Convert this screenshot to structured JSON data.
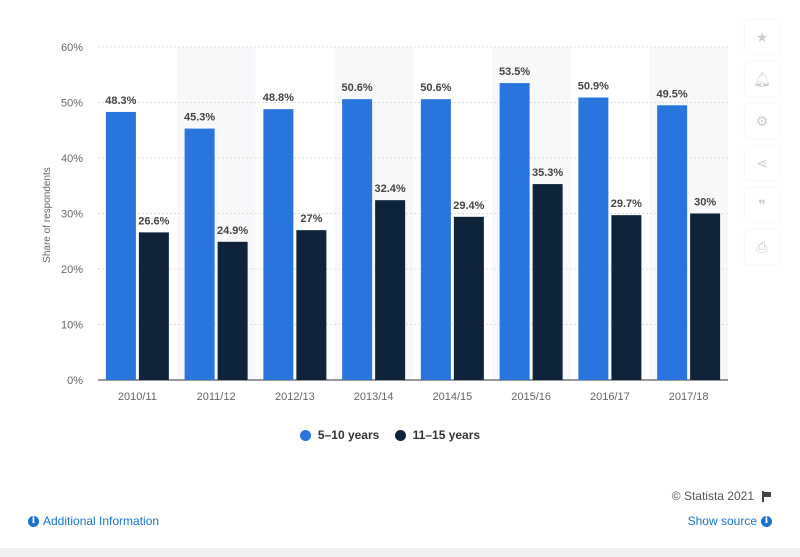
{
  "chart_data": {
    "type": "bar",
    "categories": [
      "2010/11",
      "2011/12",
      "2012/13",
      "2013/14",
      "2014/15",
      "2015/16",
      "2016/17",
      "2017/18"
    ],
    "series": [
      {
        "name": "5-10 years",
        "values": [
          48.3,
          45.3,
          48.8,
          50.6,
          50.6,
          53.5,
          50.9,
          49.5
        ],
        "labels": [
          "48.3%",
          "45.3%",
          "48.8%",
          "50.6%",
          "50.6%",
          "53.5%",
          "50.9%",
          "49.5%"
        ]
      },
      {
        "name": "11-15 years",
        "values": [
          26.6,
          24.9,
          27,
          32.4,
          29.4,
          35.3,
          29.7,
          30
        ],
        "labels": [
          "26.6%",
          "24.9%",
          "27%",
          "32.4%",
          "29.4%",
          "35.3%",
          "29.7%",
          "30%"
        ]
      }
    ],
    "ylabel": "Share of respondents",
    "ylim": [
      0,
      60
    ],
    "yticks": [
      0,
      10,
      20,
      30,
      40,
      50,
      60
    ],
    "ytick_labels": [
      "0%",
      "10%",
      "20%",
      "30%",
      "40%",
      "50%",
      "60%"
    ],
    "grid": true,
    "legend": "bottom",
    "colors": [
      "#2876dd",
      "#0f243b"
    ]
  },
  "legend": {
    "items": [
      "5–10 years",
      "11–15 years"
    ]
  },
  "credit": "© Statista 2021",
  "footer": {
    "additional_info": "Additional Information",
    "show_source": "Show source"
  },
  "side_panel": {
    "icons": [
      "star-icon",
      "bell-icon",
      "gear-icon",
      "share-icon",
      "quote-icon",
      "print-icon"
    ]
  }
}
